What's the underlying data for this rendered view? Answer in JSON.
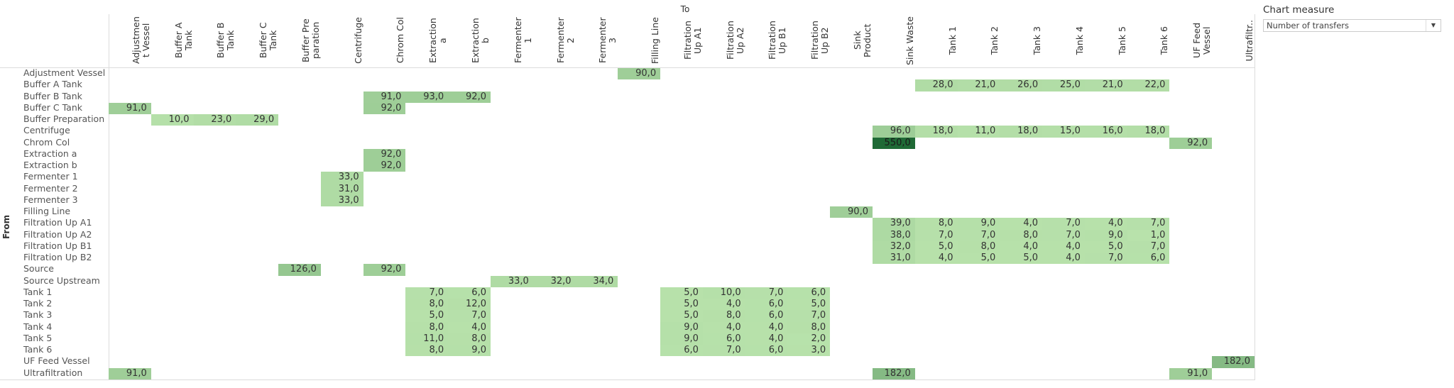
{
  "chart_data": {
    "type": "heatmap",
    "title": "",
    "xlabel": "To",
    "ylabel": "From",
    "columns": [
      "Adjustmen t Vessel",
      "Buffer A Tank",
      "Buffer B Tank",
      "Buffer C Tank",
      "Buffer Pre paration",
      "Centrifuge",
      "Chrom Col",
      "Extraction a",
      "Extraction b",
      "Fermenter 1",
      "Fermenter 2",
      "Fermenter 3",
      "Filling Line",
      "Filtration Up A1",
      "Filtration Up A2",
      "Filtration Up B1",
      "Filtration Up B2",
      "Sink Product",
      "Sink Waste",
      "Tank 1",
      "Tank 2",
      "Tank 3",
      "Tank 4",
      "Tank 5",
      "Tank 6",
      "UF Feed Vessel",
      "Ultrafiltr.."
    ],
    "rows": [
      "Adjustment Vessel",
      "Buffer A Tank",
      "Buffer B Tank",
      "Buffer C Tank",
      "Buffer Preparation",
      "Centrifuge",
      "Chrom Col",
      "Extraction a",
      "Extraction b",
      "Fermenter 1",
      "Fermenter 2",
      "Fermenter 3",
      "Filling Line",
      "Filtration Up A1",
      "Filtration Up A2",
      "Filtration Up B1",
      "Filtration Up B2",
      "Source",
      "Source Upstream",
      "Tank 1",
      "Tank 2",
      "Tank 3",
      "Tank 4",
      "Tank 5",
      "Tank 6",
      "UF Feed Vessel",
      "Ultrafiltration"
    ],
    "value_format": "decimal comma, 1 decimal",
    "color_scale": {
      "low": "#b8e2ab",
      "high": "#1f6a36",
      "range": [
        0,
        550
      ]
    },
    "cells": [
      {
        "from": "Adjustment Vessel",
        "to": "Filling Line",
        "value": 90
      },
      {
        "from": "Buffer A Tank",
        "to": "Tank 1",
        "value": 28
      },
      {
        "from": "Buffer A Tank",
        "to": "Tank 2",
        "value": 21
      },
      {
        "from": "Buffer A Tank",
        "to": "Tank 3",
        "value": 26
      },
      {
        "from": "Buffer A Tank",
        "to": "Tank 4",
        "value": 25
      },
      {
        "from": "Buffer A Tank",
        "to": "Tank 5",
        "value": 21
      },
      {
        "from": "Buffer A Tank",
        "to": "Tank 6",
        "value": 22
      },
      {
        "from": "Buffer B Tank",
        "to": "Chrom Col",
        "value": 91
      },
      {
        "from": "Buffer B Tank",
        "to": "Extraction a",
        "value": 93
      },
      {
        "from": "Buffer B Tank",
        "to": "Extraction b",
        "value": 92
      },
      {
        "from": "Buffer C Tank",
        "to": "Adjustmen t Vessel",
        "value": 91
      },
      {
        "from": "Buffer C Tank",
        "to": "Chrom Col",
        "value": 92
      },
      {
        "from": "Buffer Preparation",
        "to": "Buffer A Tank",
        "value": 10
      },
      {
        "from": "Buffer Preparation",
        "to": "Buffer B Tank",
        "value": 23
      },
      {
        "from": "Buffer Preparation",
        "to": "Buffer C Tank",
        "value": 29
      },
      {
        "from": "Centrifuge",
        "to": "Sink Waste",
        "value": 96
      },
      {
        "from": "Centrifuge",
        "to": "Tank 1",
        "value": 18
      },
      {
        "from": "Centrifuge",
        "to": "Tank 2",
        "value": 11
      },
      {
        "from": "Centrifuge",
        "to": "Tank 3",
        "value": 18
      },
      {
        "from": "Centrifuge",
        "to": "Tank 4",
        "value": 15
      },
      {
        "from": "Centrifuge",
        "to": "Tank 5",
        "value": 16
      },
      {
        "from": "Centrifuge",
        "to": "Tank 6",
        "value": 18
      },
      {
        "from": "Chrom Col",
        "to": "Sink Waste",
        "value": 550
      },
      {
        "from": "Chrom Col",
        "to": "UF Feed Vessel",
        "value": 92
      },
      {
        "from": "Extraction a",
        "to": "Chrom Col",
        "value": 92
      },
      {
        "from": "Extraction b",
        "to": "Chrom Col",
        "value": 92
      },
      {
        "from": "Fermenter 1",
        "to": "Centrifuge",
        "value": 33
      },
      {
        "from": "Fermenter 2",
        "to": "Centrifuge",
        "value": 31
      },
      {
        "from": "Fermenter 3",
        "to": "Centrifuge",
        "value": 33
      },
      {
        "from": "Filling Line",
        "to": "Sink Product",
        "value": 90
      },
      {
        "from": "Filtration Up A1",
        "to": "Sink Waste",
        "value": 39
      },
      {
        "from": "Filtration Up A1",
        "to": "Tank 1",
        "value": 8
      },
      {
        "from": "Filtration Up A1",
        "to": "Tank 2",
        "value": 9
      },
      {
        "from": "Filtration Up A1",
        "to": "Tank 3",
        "value": 4
      },
      {
        "from": "Filtration Up A1",
        "to": "Tank 4",
        "value": 7
      },
      {
        "from": "Filtration Up A1",
        "to": "Tank 5",
        "value": 4
      },
      {
        "from": "Filtration Up A1",
        "to": "Tank 6",
        "value": 7
      },
      {
        "from": "Filtration Up A2",
        "to": "Sink Waste",
        "value": 38
      },
      {
        "from": "Filtration Up A2",
        "to": "Tank 1",
        "value": 7
      },
      {
        "from": "Filtration Up A2",
        "to": "Tank 2",
        "value": 7
      },
      {
        "from": "Filtration Up A2",
        "to": "Tank 3",
        "value": 8
      },
      {
        "from": "Filtration Up A2",
        "to": "Tank 4",
        "value": 7
      },
      {
        "from": "Filtration Up A2",
        "to": "Tank 5",
        "value": 9
      },
      {
        "from": "Filtration Up A2",
        "to": "Tank 6",
        "value": 1
      },
      {
        "from": "Filtration Up B1",
        "to": "Sink Waste",
        "value": 32
      },
      {
        "from": "Filtration Up B1",
        "to": "Tank 1",
        "value": 5
      },
      {
        "from": "Filtration Up B1",
        "to": "Tank 2",
        "value": 8
      },
      {
        "from": "Filtration Up B1",
        "to": "Tank 3",
        "value": 4
      },
      {
        "from": "Filtration Up B1",
        "to": "Tank 4",
        "value": 4
      },
      {
        "from": "Filtration Up B1",
        "to": "Tank 5",
        "value": 5
      },
      {
        "from": "Filtration Up B1",
        "to": "Tank 6",
        "value": 7
      },
      {
        "from": "Filtration Up B2",
        "to": "Sink Waste",
        "value": 31
      },
      {
        "from": "Filtration Up B2",
        "to": "Tank 1",
        "value": 4
      },
      {
        "from": "Filtration Up B2",
        "to": "Tank 2",
        "value": 5
      },
      {
        "from": "Filtration Up B2",
        "to": "Tank 3",
        "value": 5
      },
      {
        "from": "Filtration Up B2",
        "to": "Tank 4",
        "value": 4
      },
      {
        "from": "Filtration Up B2",
        "to": "Tank 5",
        "value": 7
      },
      {
        "from": "Filtration Up B2",
        "to": "Tank 6",
        "value": 6
      },
      {
        "from": "Source",
        "to": "Buffer Pre paration",
        "value": 126
      },
      {
        "from": "Source",
        "to": "Chrom Col",
        "value": 92
      },
      {
        "from": "Source Upstream",
        "to": "Fermenter 1",
        "value": 33
      },
      {
        "from": "Source Upstream",
        "to": "Fermenter 2",
        "value": 32
      },
      {
        "from": "Source Upstream",
        "to": "Fermenter 3",
        "value": 34
      },
      {
        "from": "Tank 1",
        "to": "Extraction a",
        "value": 7
      },
      {
        "from": "Tank 1",
        "to": "Extraction b",
        "value": 6
      },
      {
        "from": "Tank 1",
        "to": "Filtration Up A1",
        "value": 5
      },
      {
        "from": "Tank 1",
        "to": "Filtration Up A2",
        "value": 10
      },
      {
        "from": "Tank 1",
        "to": "Filtration Up B1",
        "value": 7
      },
      {
        "from": "Tank 1",
        "to": "Filtration Up B2",
        "value": 6
      },
      {
        "from": "Tank 2",
        "to": "Extraction a",
        "value": 8
      },
      {
        "from": "Tank 2",
        "to": "Extraction b",
        "value": 12
      },
      {
        "from": "Tank 2",
        "to": "Filtration Up A1",
        "value": 5
      },
      {
        "from": "Tank 2",
        "to": "Filtration Up A2",
        "value": 4
      },
      {
        "from": "Tank 2",
        "to": "Filtration Up B1",
        "value": 6
      },
      {
        "from": "Tank 2",
        "to": "Filtration Up B2",
        "value": 5
      },
      {
        "from": "Tank 3",
        "to": "Extraction a",
        "value": 5
      },
      {
        "from": "Tank 3",
        "to": "Extraction b",
        "value": 7
      },
      {
        "from": "Tank 3",
        "to": "Filtration Up A1",
        "value": 5
      },
      {
        "from": "Tank 3",
        "to": "Filtration Up A2",
        "value": 8
      },
      {
        "from": "Tank 3",
        "to": "Filtration Up B1",
        "value": 6
      },
      {
        "from": "Tank 3",
        "to": "Filtration Up B2",
        "value": 7
      },
      {
        "from": "Tank 4",
        "to": "Extraction a",
        "value": 8
      },
      {
        "from": "Tank 4",
        "to": "Extraction b",
        "value": 4
      },
      {
        "from": "Tank 4",
        "to": "Filtration Up A1",
        "value": 9
      },
      {
        "from": "Tank 4",
        "to": "Filtration Up A2",
        "value": 4
      },
      {
        "from": "Tank 4",
        "to": "Filtration Up B1",
        "value": 4
      },
      {
        "from": "Tank 4",
        "to": "Filtration Up B2",
        "value": 8
      },
      {
        "from": "Tank 5",
        "to": "Extraction a",
        "value": 11
      },
      {
        "from": "Tank 5",
        "to": "Extraction b",
        "value": 8
      },
      {
        "from": "Tank 5",
        "to": "Filtration Up A1",
        "value": 9
      },
      {
        "from": "Tank 5",
        "to": "Filtration Up A2",
        "value": 6
      },
      {
        "from": "Tank 5",
        "to": "Filtration Up B1",
        "value": 4
      },
      {
        "from": "Tank 5",
        "to": "Filtration Up B2",
        "value": 2
      },
      {
        "from": "Tank 6",
        "to": "Extraction a",
        "value": 8
      },
      {
        "from": "Tank 6",
        "to": "Extraction b",
        "value": 9
      },
      {
        "from": "Tank 6",
        "to": "Filtration Up A1",
        "value": 6
      },
      {
        "from": "Tank 6",
        "to": "Filtration Up A2",
        "value": 7
      },
      {
        "from": "Tank 6",
        "to": "Filtration Up B1",
        "value": 6
      },
      {
        "from": "Tank 6",
        "to": "Filtration Up B2",
        "value": 3
      },
      {
        "from": "UF Feed Vessel",
        "to": "Ultrafiltr..",
        "value": 182
      },
      {
        "from": "Ultrafiltration",
        "to": "Adjustmen t Vessel",
        "value": 91
      },
      {
        "from": "Ultrafiltration",
        "to": "Sink Waste",
        "value": 182
      },
      {
        "from": "Ultrafiltration",
        "to": "UF Feed Vessel",
        "value": 91
      }
    ]
  },
  "panel": {
    "title": "Chart measure",
    "dropdown_value": "Number of transfers",
    "dropdown_icon": "caret-down-icon"
  }
}
